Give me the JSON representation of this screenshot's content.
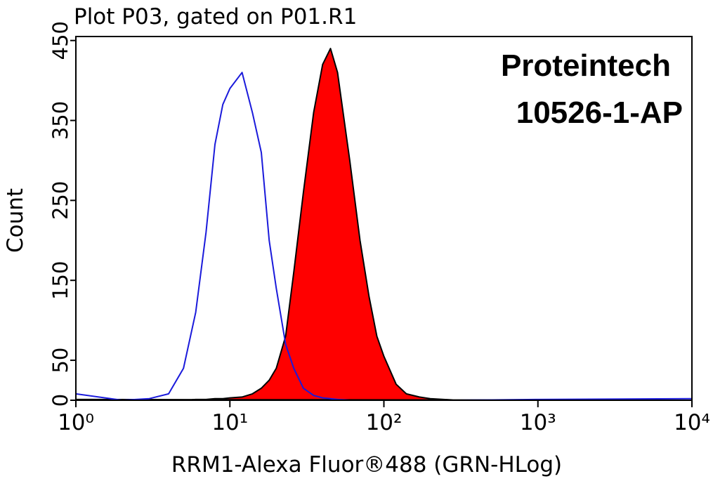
{
  "chart_data": {
    "type": "histogram-overlay",
    "title": "Plot P03, gated on P01.R1",
    "x_label": "RRM1-Alexa Fluor®488 (GRN-HLog)",
    "y_label": "Count",
    "annotations": [
      "Proteintech",
      "10526-1-AP"
    ],
    "x_scale": "log",
    "x": [
      1,
      2,
      3,
      4,
      5,
      6,
      7,
      8,
      9,
      10,
      12,
      14,
      16,
      18,
      20,
      23,
      26,
      30,
      35,
      40,
      45,
      50,
      60,
      70,
      80,
      90,
      100,
      120,
      140,
      170,
      200,
      300,
      1000,
      10000
    ],
    "series": [
      {
        "color": "#ff0000",
        "outline": "#000000",
        "filled": true,
        "values": [
          1,
          0,
          0,
          0,
          0,
          1,
          1,
          2,
          2,
          3,
          4,
          8,
          15,
          25,
          40,
          80,
          160,
          260,
          360,
          420,
          440,
          410,
          300,
          200,
          130,
          80,
          55,
          20,
          8,
          4,
          2,
          0,
          0,
          0
        ]
      },
      {
        "color": "#1a1adb",
        "filled": false,
        "values": [
          8,
          0,
          2,
          8,
          40,
          110,
          210,
          320,
          370,
          390,
          410,
          360,
          310,
          200,
          140,
          70,
          40,
          15,
          6,
          3,
          2,
          1,
          0,
          0,
          0,
          0,
          0,
          0,
          0,
          0,
          0,
          0,
          1,
          2
        ]
      }
    ],
    "xlim": [
      1,
      10000
    ],
    "xticks": [
      {
        "value": 1,
        "label": "10⁰"
      },
      {
        "value": 10,
        "label": "10¹"
      },
      {
        "value": 100,
        "label": "10²"
      },
      {
        "value": 1000,
        "label": "10³"
      },
      {
        "value": 10000,
        "label": "10⁴"
      }
    ],
    "ylim": [
      0,
      455
    ],
    "yticks": [
      0,
      50,
      150,
      250,
      350,
      450
    ]
  }
}
